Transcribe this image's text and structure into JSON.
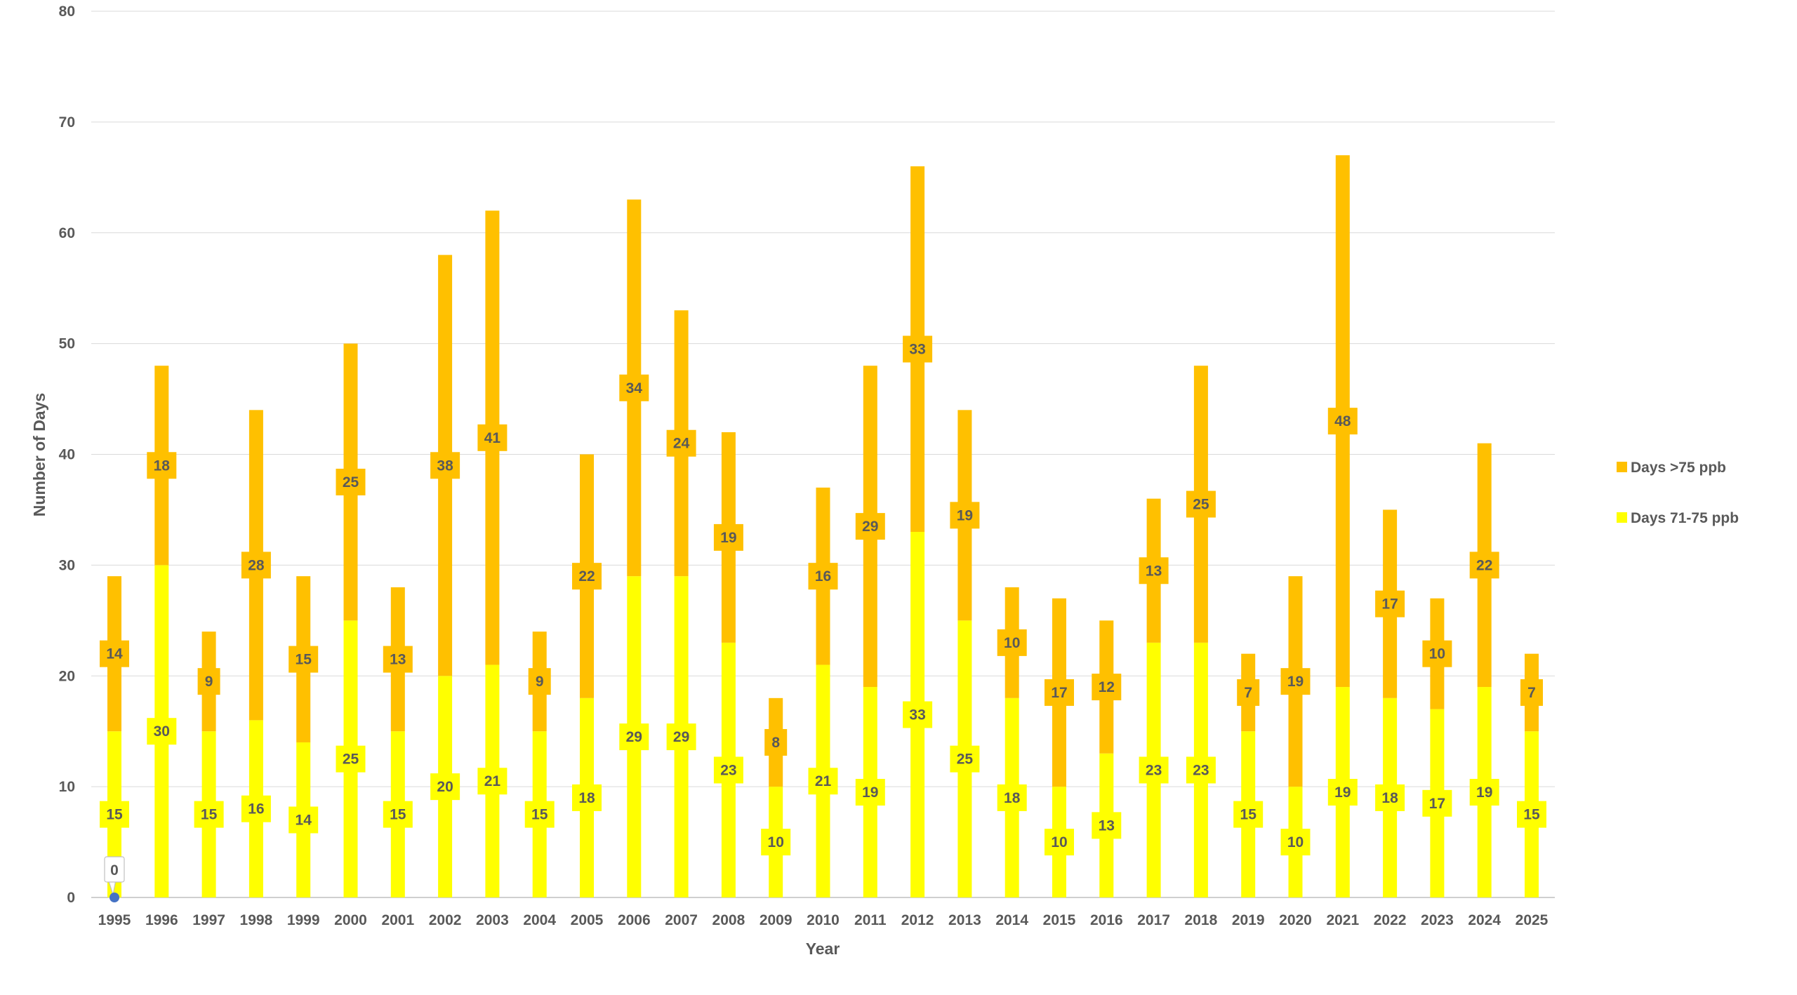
{
  "chart_data": {
    "type": "bar",
    "stacked": true,
    "title": "",
    "xlabel": "Year",
    "ylabel": "Number of Days",
    "ylim": [
      0,
      80
    ],
    "yticks": [
      0,
      10,
      20,
      30,
      40,
      50,
      60,
      70,
      80
    ],
    "grid": true,
    "legend_position": "right",
    "categories": [
      "1995",
      "1996",
      "1997",
      "1998",
      "1999",
      "2000",
      "2001",
      "2002",
      "2003",
      "2004",
      "2005",
      "2006",
      "2007",
      "2008",
      "2009",
      "2010",
      "2011",
      "2012",
      "2013",
      "2014",
      "2015",
      "2016",
      "2017",
      "2018",
      "2019",
      "2020",
      "2021",
      "2022",
      "2023",
      "2024",
      "2025"
    ],
    "series": [
      {
        "name": "Days 71-75 ppb",
        "color": "#FFFF00",
        "values": [
          15,
          30,
          15,
          16,
          14,
          25,
          15,
          20,
          21,
          15,
          18,
          29,
          29,
          23,
          10,
          21,
          19,
          33,
          25,
          18,
          10,
          13,
          23,
          23,
          15,
          10,
          19,
          18,
          17,
          19,
          15
        ]
      },
      {
        "name": "Days >75 ppb",
        "color": "#FFC000",
        "values": [
          14,
          18,
          9,
          28,
          15,
          25,
          13,
          38,
          41,
          9,
          22,
          34,
          24,
          19,
          8,
          16,
          29,
          33,
          19,
          10,
          17,
          12,
          13,
          25,
          7,
          19,
          48,
          17,
          10,
          22,
          7
        ]
      }
    ],
    "annotation": {
      "category": "1995",
      "value": 0,
      "label": "0",
      "marker_color": "#4472C4"
    }
  }
}
